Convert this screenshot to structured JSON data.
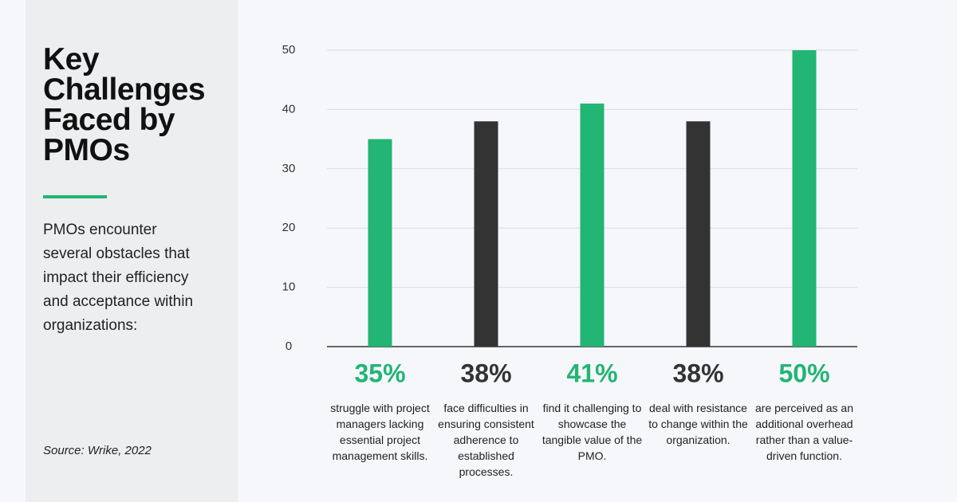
{
  "chart_data": {
    "type": "bar",
    "title": "Key Challenges Faced by PMOs",
    "subtitle": "PMOs encounter several obstacles that impact their efficiency and acceptance within organizations:",
    "source": "Source: Wrike, 2022",
    "categories": [
      "struggle with project managers lacking essential project management skills.",
      "face difficulties in ensuring consistent adherence to established processes.",
      "find it challenging to showcase the tangible value of the PMO.",
      "deal with resistance to change within the organization.",
      "are perceived as an additional overhead rather than a value-driven function."
    ],
    "values": [
      35,
      38,
      41,
      38,
      50
    ],
    "value_labels": [
      "35%",
      "38%",
      "41%",
      "38%",
      "50%"
    ],
    "colors": [
      "#22b573",
      "#333333",
      "#22b573",
      "#333333",
      "#22b573"
    ],
    "ylim": [
      0,
      50
    ],
    "yticks": [
      0,
      10,
      20,
      30,
      40,
      50
    ],
    "grid": true
  }
}
